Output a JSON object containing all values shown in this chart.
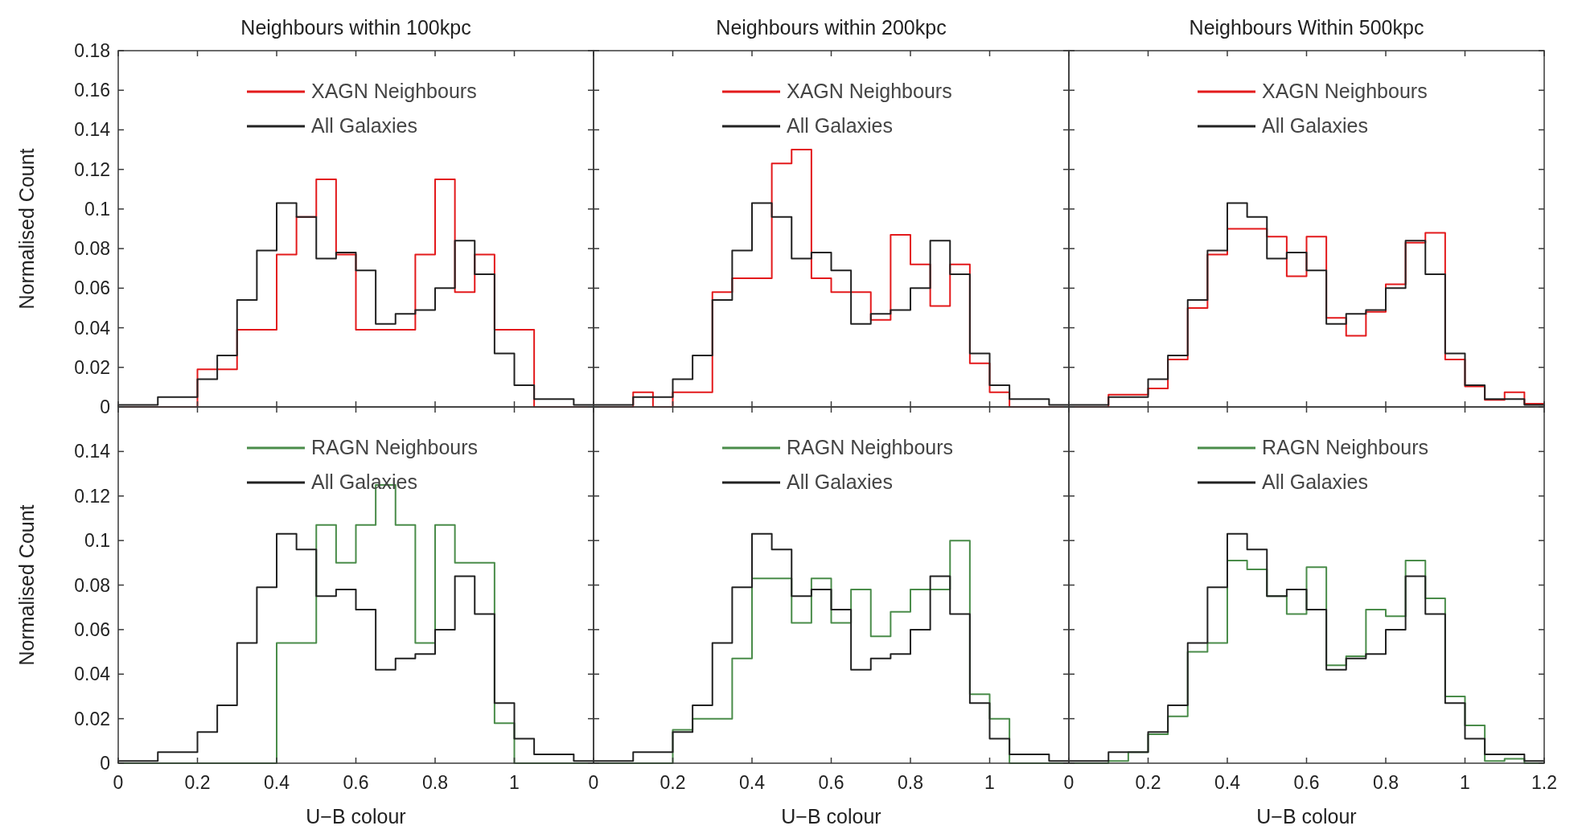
{
  "chart_data": [
    {
      "type": "histogram",
      "title": "Neighbours within 100kpc",
      "ylabel": "Normalised Count",
      "bins": [
        0,
        0.05,
        0.1,
        0.15,
        0.2,
        0.25,
        0.3,
        0.35,
        0.4,
        0.45,
        0.5,
        0.55,
        0.6,
        0.65,
        0.7,
        0.75,
        0.8,
        0.85,
        0.9,
        0.95,
        1,
        1.05,
        1.1,
        1.15,
        1.2
      ],
      "xlim": [
        0,
        1.2
      ],
      "xticks": [
        0,
        0.2,
        0.4,
        0.6,
        0.8,
        1,
        1.2
      ],
      "ylim": [
        0,
        0.18
      ],
      "yticks": [
        0,
        0.02,
        0.04,
        0.06,
        0.08,
        0.1,
        0.12,
        0.14,
        0.16,
        0.18
      ],
      "tick_labels": "y",
      "legend": "top",
      "grid": false,
      "series": [
        {
          "name": "XAGN Neighbours",
          "color": "#e31a1c",
          "values": [
            0,
            0,
            0,
            0,
            0.019,
            0.019,
            0.039,
            0.039,
            0.077,
            0.096,
            0.115,
            0.077,
            0.039,
            0.039,
            0.039,
            0.077,
            0.115,
            0.058,
            0.077,
            0.039,
            0.039,
            0,
            0,
            0
          ]
        },
        {
          "name": "All Galaxies",
          "color": "#222222",
          "values": [
            0.001,
            0.001,
            0.005,
            0.005,
            0.014,
            0.026,
            0.054,
            0.079,
            0.103,
            0.096,
            0.075,
            0.078,
            0.069,
            0.042,
            0.047,
            0.049,
            0.06,
            0.084,
            0.067,
            0.027,
            0.011,
            0.004,
            0.004,
            0.001
          ]
        }
      ]
    },
    {
      "type": "histogram",
      "title": "Neighbours within 200kpc",
      "bins": [
        0,
        0.05,
        0.1,
        0.15,
        0.2,
        0.25,
        0.3,
        0.35,
        0.4,
        0.45,
        0.5,
        0.55,
        0.6,
        0.65,
        0.7,
        0.75,
        0.8,
        0.85,
        0.9,
        0.95,
        1,
        1.05,
        1.1,
        1.15,
        1.2
      ],
      "xlim": [
        0,
        1.2
      ],
      "xticks": [
        0,
        0.2,
        0.4,
        0.6,
        0.8,
        1,
        1.2
      ],
      "ylim": [
        0,
        0.18
      ],
      "yticks": [
        0,
        0.02,
        0.04,
        0.06,
        0.08,
        0.1,
        0.12,
        0.14,
        0.16,
        0.18
      ],
      "tick_labels": false,
      "legend": "top",
      "grid": false,
      "series": [
        {
          "name": "XAGN Neighbours",
          "color": "#e31a1c",
          "values": [
            0,
            0,
            0.0074,
            0,
            0.0074,
            0.0074,
            0.058,
            0.065,
            0.065,
            0.123,
            0.13,
            0.065,
            0.058,
            0.058,
            0.044,
            0.087,
            0.072,
            0.051,
            0.072,
            0.022,
            0.0074,
            0,
            0,
            0
          ]
        },
        {
          "name": "All Galaxies",
          "color": "#222222",
          "values": [
            0.001,
            0.001,
            0.005,
            0.005,
            0.014,
            0.026,
            0.054,
            0.079,
            0.103,
            0.096,
            0.075,
            0.078,
            0.069,
            0.042,
            0.047,
            0.049,
            0.06,
            0.084,
            0.067,
            0.027,
            0.011,
            0.004,
            0.004,
            0.001
          ]
        }
      ]
    },
    {
      "type": "histogram",
      "title": "Neighbours Within 500kpc",
      "bins": [
        0,
        0.05,
        0.1,
        0.15,
        0.2,
        0.25,
        0.3,
        0.35,
        0.4,
        0.45,
        0.5,
        0.55,
        0.6,
        0.65,
        0.7,
        0.75,
        0.8,
        0.85,
        0.9,
        0.95,
        1,
        1.05,
        1.1,
        1.15,
        1.2
      ],
      "xlim": [
        0,
        1.2
      ],
      "xticks": [
        0,
        0.2,
        0.4,
        0.6,
        0.8,
        1,
        1.2
      ],
      "ylim": [
        0,
        0.18
      ],
      "yticks": [
        0,
        0.02,
        0.04,
        0.06,
        0.08,
        0.1,
        0.12,
        0.14,
        0.16,
        0.18
      ],
      "tick_labels": false,
      "legend": "top",
      "grid": false,
      "series": [
        {
          "name": "XAGN Neighbours",
          "color": "#e31a1c",
          "values": [
            0,
            0,
            0.0062,
            0.0062,
            0.0093,
            0.024,
            0.05,
            0.077,
            0.09,
            0.09,
            0.086,
            0.066,
            0.086,
            0.045,
            0.036,
            0.048,
            0.062,
            0.083,
            0.088,
            0.024,
            0.0104,
            0.0036,
            0.0074,
            0.0016
          ]
        },
        {
          "name": "All Galaxies",
          "color": "#222222",
          "values": [
            0.001,
            0.001,
            0.005,
            0.005,
            0.014,
            0.026,
            0.054,
            0.079,
            0.103,
            0.096,
            0.075,
            0.078,
            0.069,
            0.042,
            0.047,
            0.049,
            0.06,
            0.084,
            0.067,
            0.027,
            0.011,
            0.004,
            0.004,
            0.001
          ]
        }
      ]
    },
    {
      "type": "histogram",
      "ylabel": "Normalised Count",
      "xlabel": "U−B colour",
      "bins": [
        0,
        0.05,
        0.1,
        0.15,
        0.2,
        0.25,
        0.3,
        0.35,
        0.4,
        0.45,
        0.5,
        0.55,
        0.6,
        0.65,
        0.7,
        0.75,
        0.8,
        0.85,
        0.9,
        0.95,
        1,
        1.05,
        1.1,
        1.15,
        1.2
      ],
      "xlim": [
        0,
        1.2
      ],
      "xticks": [
        0,
        0.2,
        0.4,
        0.6,
        0.8,
        1,
        {
          "value": 1.2,
          "label": null
        }
      ],
      "ylim": [
        0,
        0.16
      ],
      "yticks": [
        0,
        0.02,
        0.04,
        0.06,
        0.08,
        0.1,
        0.12,
        0.14,
        {
          "value": 0.16,
          "label": null
        }
      ],
      "legend": "top",
      "grid": false,
      "series": [
        {
          "name": "RAGN Neighbours",
          "color": "#4a8c4a",
          "values": [
            0,
            0,
            0,
            0,
            0,
            0,
            0,
            0,
            0.054,
            0.054,
            0.107,
            0.09,
            0.107,
            0.125,
            0.107,
            0.054,
            0.107,
            0.09,
            0.09,
            0.018,
            0,
            0,
            0,
            0
          ]
        },
        {
          "name": "All Galaxies",
          "color": "#222222",
          "values": [
            0.001,
            0.001,
            0.005,
            0.005,
            0.014,
            0.026,
            0.054,
            0.079,
            0.103,
            0.096,
            0.075,
            0.078,
            0.069,
            0.042,
            0.047,
            0.049,
            0.06,
            0.084,
            0.067,
            0.027,
            0.011,
            0.004,
            0.004,
            0.001
          ]
        }
      ]
    },
    {
      "type": "histogram",
      "xlabel": "U−B colour",
      "bins": [
        0,
        0.05,
        0.1,
        0.15,
        0.2,
        0.25,
        0.3,
        0.35,
        0.4,
        0.45,
        0.5,
        0.55,
        0.6,
        0.65,
        0.7,
        0.75,
        0.8,
        0.85,
        0.9,
        0.95,
        1,
        1.05,
        1.1,
        1.15,
        1.2
      ],
      "xlim": [
        0,
        1.2
      ],
      "xticks": [
        0,
        0.2,
        0.4,
        0.6,
        0.8,
        1,
        {
          "value": 1.2,
          "label": null
        }
      ],
      "ylim": [
        0,
        0.16
      ],
      "yticks": [
        0,
        0.02,
        0.04,
        0.06,
        0.08,
        0.1,
        0.12,
        0.14,
        0.16
      ],
      "tick_labels": "x",
      "legend": "top",
      "grid": false,
      "series": [
        {
          "name": "RAGN Neighbours",
          "color": "#4a8c4a",
          "values": [
            0,
            0,
            0,
            0,
            0.015,
            0.02,
            0.02,
            0.047,
            0.083,
            0.083,
            0.063,
            0.083,
            0.063,
            0.078,
            0.057,
            0.068,
            0.078,
            0.078,
            0.1,
            0.031,
            0.02,
            0,
            0,
            0
          ]
        },
        {
          "name": "All Galaxies",
          "color": "#222222",
          "values": [
            0.001,
            0.001,
            0.005,
            0.005,
            0.014,
            0.026,
            0.054,
            0.079,
            0.103,
            0.096,
            0.075,
            0.078,
            0.069,
            0.042,
            0.047,
            0.049,
            0.06,
            0.084,
            0.067,
            0.027,
            0.011,
            0.004,
            0.004,
            0.001
          ]
        }
      ]
    },
    {
      "type": "histogram",
      "xlabel": "U−B colour",
      "bins": [
        0,
        0.05,
        0.1,
        0.15,
        0.2,
        0.25,
        0.3,
        0.35,
        0.4,
        0.45,
        0.5,
        0.55,
        0.6,
        0.65,
        0.7,
        0.75,
        0.8,
        0.85,
        0.9,
        0.95,
        1,
        1.05,
        1.1,
        1.15,
        1.2
      ],
      "xlim": [
        0,
        1.2
      ],
      "xticks": [
        0,
        0.2,
        0.4,
        0.6,
        0.8,
        1,
        1.2
      ],
      "ylim": [
        0,
        0.16
      ],
      "yticks": [
        0,
        0.02,
        0.04,
        0.06,
        0.08,
        0.1,
        0.12,
        0.14,
        0.16
      ],
      "tick_labels": "x",
      "legend": "top",
      "grid": false,
      "series": [
        {
          "name": "RAGN Neighbours",
          "color": "#4a8c4a",
          "values": [
            0,
            0,
            0.001,
            0.005,
            0.013,
            0.021,
            0.05,
            0.054,
            0.091,
            0.087,
            0.075,
            0.067,
            0.088,
            0.044,
            0.048,
            0.069,
            0.066,
            0.091,
            0.074,
            0.03,
            0.017,
            0.001,
            0.002,
            0
          ]
        },
        {
          "name": "All Galaxies",
          "color": "#222222",
          "values": [
            0.001,
            0.001,
            0.005,
            0.005,
            0.014,
            0.026,
            0.054,
            0.079,
            0.103,
            0.096,
            0.075,
            0.078,
            0.069,
            0.042,
            0.047,
            0.049,
            0.06,
            0.084,
            0.067,
            0.027,
            0.011,
            0.004,
            0.004,
            0.001
          ]
        }
      ]
    }
  ]
}
